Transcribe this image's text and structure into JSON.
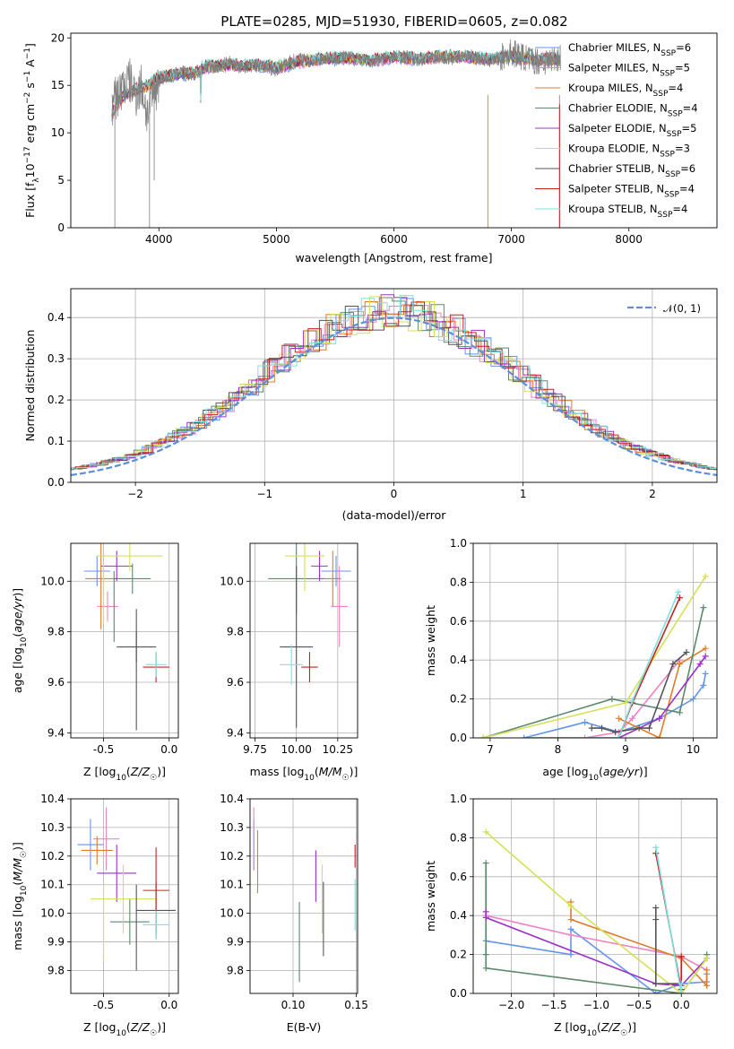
{
  "title": "PLATE=0285, MJD=51930, FIBERID=0605, z=0.082",
  "colors": {
    "Chabrier MILES": "#6495ED",
    "Salpeter MILES": "#EE82C8",
    "Kroupa MILES": "#E07B2A",
    "Chabrier ELODIE": "#5B8A6B",
    "Salpeter ELODIE": "#9B30C8",
    "Kroupa ELODIE": "#D4E157",
    "Chabrier STELIB": "#555555",
    "Salpeter STELIB": "#C62020",
    "Kroupa STELIB": "#7FE0E0",
    "data": "#808080",
    "normal": "#5B8FD9"
  },
  "chart_data": [
    {
      "type": "line",
      "name": "spectrum",
      "xlabel": "wavelength [Angstrom, rest frame]",
      "ylabel": "Flux [f_λ 10^-17 erg cm^-2 s^-1 A^-1]",
      "xlim": [
        3250,
        8750
      ],
      "ylim": [
        0,
        20.5
      ],
      "xticks": [
        4000,
        5000,
        6000,
        7000,
        8000
      ],
      "yticks": [
        0,
        5,
        10,
        15,
        20
      ],
      "legend_position": "upper-right",
      "legend": [
        {
          "name": "Chabrier MILES",
          "label": "Chabrier MILES, N",
          "sub": "SSP",
          "suffix": "=6"
        },
        {
          "name": "Salpeter MILES",
          "label": "Salpeter MILES, N",
          "sub": "SSP",
          "suffix": "=5"
        },
        {
          "name": "Kroupa MILES",
          "label": "Kroupa MILES, N",
          "sub": "SSP",
          "suffix": "=4"
        },
        {
          "name": "Chabrier ELODIE",
          "label": "Chabrier ELODIE, N",
          "sub": "SSP",
          "suffix": "=4"
        },
        {
          "name": "Salpeter ELODIE",
          "label": "Salpeter ELODIE, N",
          "sub": "SSP",
          "suffix": "=5"
        },
        {
          "name": "Kroupa ELODIE",
          "label": "Kroupa ELODIE, N",
          "sub": "SSP",
          "suffix": "=3"
        },
        {
          "name": "Chabrier STELIB",
          "label": "Chabrier STELIB, N",
          "sub": "SSP",
          "suffix": "=6"
        },
        {
          "name": "Salpeter STELIB",
          "label": "Salpeter STELIB, N",
          "sub": "SSP",
          "suffix": "=4"
        },
        {
          "name": "Kroupa STELIB",
          "label": "Kroupa STELIB, N",
          "sub": "SSP",
          "suffix": "=4"
        }
      ],
      "series": [
        {
          "name": "data",
          "x": [
            3600,
            3650,
            3700,
            3750,
            3800,
            3850,
            3900,
            3950,
            4000,
            4100,
            4200,
            4300,
            4400,
            4500,
            4600,
            4700,
            4800,
            4900,
            5000,
            5100,
            5200,
            5300,
            5400,
            5500,
            5600,
            5700,
            5800,
            5900,
            6000,
            6100,
            6200,
            6300,
            6400,
            6500,
            6600,
            6700,
            6800,
            6900,
            7000,
            7100,
            7200,
            7300,
            7400
          ],
          "y": [
            13,
            14,
            15,
            15.5,
            14,
            15,
            12,
            14,
            15.5,
            16,
            16.5,
            16,
            17,
            17,
            17.5,
            17,
            17.2,
            17,
            16.5,
            17.5,
            17.8,
            17.6,
            17.8,
            18,
            18,
            17.9,
            17.5,
            17.8,
            18,
            18.1,
            17.6,
            18,
            18,
            17.7,
            18.2,
            18,
            17.5,
            17.8,
            18.5,
            18,
            17.6,
            17.5,
            18
          ]
        },
        {
          "name": "models",
          "x": [
            3600,
            3700,
            3800,
            3900,
            4000,
            4100,
            4200,
            4300,
            4400,
            4500,
            4600,
            4700,
            4800,
            4900,
            5000,
            5200,
            5400,
            5600,
            5800,
            6000,
            6200,
            6400,
            6600,
            6800,
            7000,
            7200,
            7400
          ],
          "y": [
            12,
            14,
            14.5,
            15,
            15.8,
            16,
            16.2,
            16.3,
            17,
            17,
            17.2,
            17,
            17.1,
            17.1,
            16.9,
            17.5,
            17.8,
            17.9,
            17.6,
            18,
            17.8,
            18,
            18,
            17.8,
            18,
            17.7,
            17.8
          ]
        }
      ]
    },
    {
      "type": "histogram",
      "name": "residuals",
      "xlabel": "(data-model)/error",
      "ylabel": "Normed distribution",
      "xlim": [
        -2.5,
        2.5
      ],
      "ylim": [
        0,
        0.47
      ],
      "xticks": [
        -2,
        -1,
        0,
        1,
        2
      ],
      "yticks": [
        0.0,
        0.1,
        0.2,
        0.3,
        0.4
      ],
      "legend_position": "upper-right",
      "legend_label": "𝒩(0, 1)",
      "bin_width": 0.1
    },
    {
      "type": "scatter",
      "name": "age-vs-metallicity",
      "xlabel": "Z [log10(Z/Z☉)]",
      "ylabel": "age [log10(age/yr)]",
      "xlim": [
        -0.75,
        0.07
      ],
      "ylim": [
        9.38,
        10.15
      ],
      "xticks": [
        -0.5,
        0.0
      ],
      "yticks": [
        9.4,
        9.6,
        9.8,
        10.0
      ],
      "points": [
        {
          "series": "Chabrier MILES",
          "x": -0.55,
          "y": 10.04,
          "xerr": 0.1,
          "yerr": 0.06
        },
        {
          "series": "Salpeter MILES",
          "x": -0.47,
          "y": 9.9,
          "xerr": 0.08,
          "yerr": 0.06
        },
        {
          "series": "Kroupa MILES",
          "x": -0.52,
          "y": 10.01,
          "xerr": 0.12,
          "yerr": 0.2
        },
        {
          "series": "Chabrier ELODIE",
          "x": -0.28,
          "y": 10.01,
          "xerr": 0.14,
          "yerr": 0.06
        },
        {
          "series": "Salpeter ELODIE",
          "x": -0.4,
          "y": 10.06,
          "xerr": 0.12,
          "yerr": 0.06
        },
        {
          "series": "Kroupa ELODIE",
          "x": -0.3,
          "y": 10.1,
          "xerr": 0.25,
          "yerr": 0.06
        },
        {
          "series": "Chabrier STELIB",
          "x": -0.25,
          "y": 9.74,
          "xerr": 0.15,
          "yerr": 0.06
        },
        {
          "series": "Salpeter STELIB",
          "x": -0.1,
          "y": 9.66,
          "xerr": 0.1,
          "yerr": 0.06
        },
        {
          "series": "Kroupa STELIB",
          "x": -0.1,
          "y": 9.67,
          "xerr": 0.08,
          "yerr": 0.05
        },
        {
          "series": "Chabrier STELIB",
          "x": -0.25,
          "y": 9.65,
          "xerr": 0.0,
          "yerr": 0.24
        },
        {
          "series": "Kroupa ELODIE",
          "x": -0.5,
          "y": 9.95,
          "xerr": 0.0,
          "yerr": 0.12
        },
        {
          "series": "Chabrier ELODIE",
          "x": -0.42,
          "y": 9.9,
          "xerr": 0.0,
          "yerr": 0.14
        }
      ]
    },
    {
      "type": "scatter",
      "name": "age-vs-mass",
      "xlabel": "mass [log10(M/M☉)]",
      "ylabel": "",
      "xlim": [
        9.72,
        10.37
      ],
      "ylim": [
        9.38,
        10.15
      ],
      "xticks": [
        9.75,
        10.0,
        10.25
      ],
      "yticks": [
        9.4,
        9.6,
        9.8,
        10.0
      ],
      "points": [
        {
          "series": "Chabrier MILES",
          "x": 10.24,
          "y": 10.04,
          "xerr": 0.09,
          "yerr": 0.06
        },
        {
          "series": "Salpeter MILES",
          "x": 10.26,
          "y": 9.9,
          "xerr": 0.05,
          "yerr": 0.16
        },
        {
          "series": "Kroupa MILES",
          "x": 10.22,
          "y": 10.01,
          "xerr": 0.05,
          "yerr": 0.11
        },
        {
          "series": "Chabrier ELODIE",
          "x": 10.0,
          "y": 10.01,
          "xerr": 0.17,
          "yerr": 0.14
        },
        {
          "series": "Salpeter ELODIE",
          "x": 10.14,
          "y": 10.06,
          "xerr": 0.05,
          "yerr": 0.06
        },
        {
          "series": "Kroupa ELODIE",
          "x": 10.05,
          "y": 10.1,
          "xerr": 0.12,
          "yerr": 0.14
        },
        {
          "series": "Chabrier STELIB",
          "x": 10.0,
          "y": 9.74,
          "xerr": 0.1,
          "yerr": 0.32
        },
        {
          "series": "Salpeter STELIB",
          "x": 10.08,
          "y": 9.66,
          "xerr": 0.05,
          "yerr": 0.06
        },
        {
          "series": "Kroupa STELIB",
          "x": 9.97,
          "y": 9.67,
          "xerr": 0.07,
          "yerr": 0.08
        }
      ]
    },
    {
      "type": "line",
      "name": "mass-weight-vs-age",
      "xlabel": "age [log10(age/yr)]",
      "ylabel": "mass weight",
      "xlim": [
        6.75,
        10.35
      ],
      "ylim": [
        0,
        1.0
      ],
      "xticks": [
        7,
        8,
        9,
        10
      ],
      "yticks": [
        0.0,
        0.2,
        0.4,
        0.6,
        0.8,
        1.0
      ],
      "series": [
        {
          "name": "Chabrier MILES",
          "x": [
            7.5,
            8.4,
            8.9,
            9.5,
            10.0,
            10.15,
            10.18
          ],
          "y": [
            0.0,
            0.08,
            0.03,
            0.1,
            0.2,
            0.27,
            0.33
          ]
        },
        {
          "name": "Salpeter MILES",
          "x": [
            8.4,
            8.9,
            9.1,
            9.8
          ],
          "y": [
            0.0,
            0.03,
            0.1,
            0.4
          ]
        },
        {
          "name": "Kroupa MILES",
          "x": [
            8.9,
            9.5,
            9.8,
            10.18
          ],
          "y": [
            0.1,
            0.0,
            0.38,
            0.46
          ]
        },
        {
          "name": "Chabrier ELODIE",
          "x": [
            6.9,
            8.8,
            9.8,
            10.15
          ],
          "y": [
            0.0,
            0.2,
            0.13,
            0.67
          ]
        },
        {
          "name": "Salpeter ELODIE",
          "x": [
            8.9,
            9.5,
            10.1,
            10.18
          ],
          "y": [
            0.0,
            0.1,
            0.38,
            0.42
          ]
        },
        {
          "name": "Kroupa ELODIE",
          "x": [
            6.9,
            9.0,
            10.18
          ],
          "y": [
            0.0,
            0.18,
            0.83
          ]
        },
        {
          "name": "Chabrier STELIB",
          "x": [
            8.5,
            8.65,
            8.85,
            9.2,
            9.35,
            9.7,
            9.9
          ],
          "y": [
            0.05,
            0.05,
            0.03,
            0.05,
            0.05,
            0.38,
            0.44
          ]
        },
        {
          "name": "Salpeter STELIB",
          "x": [
            7.6,
            8.9,
            9.1,
            9.8
          ],
          "y": [
            0.0,
            0.0,
            0.18,
            0.72
          ]
        },
        {
          "name": "Kroupa STELIB",
          "x": [
            7.6,
            8.9,
            9.1,
            9.78
          ],
          "y": [
            0.0,
            0.0,
            0.19,
            0.75
          ]
        }
      ]
    },
    {
      "type": "scatter",
      "name": "mass-vs-metallicity",
      "xlabel": "Z [log10(Z/Z☉)]",
      "ylabel": "mass [log10(M/M☉)]",
      "xlim": [
        -0.75,
        0.07
      ],
      "ylim": [
        9.72,
        10.4
      ],
      "xticks": [
        -0.5,
        0.0
      ],
      "yticks": [
        9.8,
        9.9,
        10.0,
        10.1,
        10.2,
        10.3,
        10.4
      ],
      "points": [
        {
          "series": "Chabrier MILES",
          "x": -0.6,
          "y": 10.24,
          "xerr": 0.1,
          "yerr": 0.09
        },
        {
          "series": "Salpeter MILES",
          "x": -0.48,
          "y": 10.26,
          "xerr": 0.1,
          "yerr": 0.11
        },
        {
          "series": "Kroupa MILES",
          "x": -0.55,
          "y": 10.22,
          "xerr": 0.12,
          "yerr": 0.05
        },
        {
          "series": "Chabrier ELODIE",
          "x": -0.3,
          "y": 9.97,
          "xerr": 0.15,
          "yerr": 0.08
        },
        {
          "series": "Salpeter ELODIE",
          "x": -0.4,
          "y": 10.14,
          "xerr": 0.15,
          "yerr": 0.1
        },
        {
          "series": "Kroupa ELODIE",
          "x": -0.35,
          "y": 10.05,
          "xerr": 0.25,
          "yerr": 0.12
        },
        {
          "series": "Chabrier STELIB",
          "x": -0.1,
          "y": 10.01,
          "xerr": 0.15,
          "yerr": 0.1
        },
        {
          "series": "Salpeter STELIB",
          "x": -0.1,
          "y": 10.08,
          "xerr": 0.1,
          "yerr": 0.15
        },
        {
          "series": "Kroupa STELIB",
          "x": -0.1,
          "y": 9.96,
          "xerr": 0.1,
          "yerr": 0.05
        },
        {
          "series": "Kroupa ELODIE",
          "x": -0.5,
          "y": 9.97,
          "xerr": 0.0,
          "yerr": 0.13
        },
        {
          "series": "Chabrier STELIB",
          "x": -0.25,
          "y": 9.95,
          "xerr": 0.0,
          "yerr": 0.15
        }
      ]
    },
    {
      "type": "scatter",
      "name": "mass-vs-extinction",
      "xlabel": "E(B-V)",
      "ylabel": "",
      "xlim": [
        0.066,
        0.151
      ],
      "ylim": [
        9.72,
        10.4
      ],
      "xticks": [
        0.1,
        0.15
      ],
      "yticks": [
        9.8,
        9.9,
        10.0,
        10.1,
        10.2,
        10.3,
        10.4
      ],
      "points": [
        {
          "series": "Chabrier MILES",
          "x": 0.069,
          "y": 10.24,
          "yerr": 0.09
        },
        {
          "series": "Salpeter MILES",
          "x": 0.069,
          "y": 10.26,
          "yerr": 0.11
        },
        {
          "series": "Kroupa MILES",
          "x": 0.072,
          "y": 10.18,
          "yerr": 0.11
        },
        {
          "series": "Chabrier ELODIE",
          "x": 0.105,
          "y": 9.9,
          "yerr": 0.14
        },
        {
          "series": "Salpeter ELODIE",
          "x": 0.118,
          "y": 10.13,
          "yerr": 0.09
        },
        {
          "series": "Kroupa ELODIE",
          "x": 0.123,
          "y": 10.05,
          "yerr": 0.12
        },
        {
          "series": "Chabrier STELIB",
          "x": 0.124,
          "y": 9.98,
          "yerr": 0.13
        },
        {
          "series": "Salpeter STELIB",
          "x": 0.149,
          "y": 10.2,
          "yerr": 0.04
        },
        {
          "series": "Kroupa STELIB",
          "x": 0.149,
          "y": 10.03,
          "yerr": 0.09
        }
      ]
    },
    {
      "type": "line",
      "name": "mass-weight-vs-metallicity",
      "xlabel": "Z [log10(Z/Z☉)]",
      "ylabel": "mass weight",
      "xlim": [
        -2.45,
        0.42
      ],
      "ylim": [
        0,
        1.0
      ],
      "xticks": [
        -2.0,
        -1.5,
        -1.0,
        -0.5,
        0.0
      ],
      "yticks": [
        0.0,
        0.2,
        0.4,
        0.6,
        0.8,
        1.0
      ],
      "series": [
        {
          "name": "Chabrier MILES",
          "x": [
            -2.3,
            -1.3,
            -1.3,
            -0.3,
            0.0,
            0.3,
            0.3
          ],
          "y": [
            0.27,
            0.2,
            0.33,
            0.0,
            0.05,
            0.06,
            0.1
          ]
        },
        {
          "name": "Salpeter MILES",
          "x": [
            -2.3,
            -1.3,
            0.0,
            0.3
          ],
          "y": [
            0.4,
            0.3,
            0.19,
            0.12
          ]
        },
        {
          "name": "Kroupa MILES",
          "x": [
            -1.3,
            -1.3,
            0.0,
            0.3,
            0.3
          ],
          "y": [
            0.47,
            0.38,
            0.18,
            0.04,
            0.12
          ]
        },
        {
          "name": "Chabrier ELODIE",
          "x": [
            -2.3,
            -2.3,
            -2.3,
            0.0,
            0.3,
            0.3
          ],
          "y": [
            0.67,
            0.2,
            0.13,
            0.0,
            0.18,
            0.2
          ]
        },
        {
          "name": "Salpeter ELODIE",
          "x": [
            -2.3,
            -2.3,
            -0.3,
            0.0,
            0.3
          ],
          "y": [
            0.42,
            0.39,
            0.05,
            0.04,
            0.18
          ]
        },
        {
          "name": "Kroupa ELODIE",
          "x": [
            -2.3,
            -1.3,
            0.0,
            0.3
          ],
          "y": [
            0.83,
            0.45,
            0.0,
            0.18
          ]
        },
        {
          "name": "Chabrier STELIB",
          "x": [
            -0.3,
            -0.3,
            -0.3,
            0.0
          ],
          "y": [
            0.44,
            0.38,
            0.05,
            0.05
          ]
        },
        {
          "name": "Salpeter STELIB",
          "x": [
            -0.3,
            0.0,
            0.0
          ],
          "y": [
            0.72,
            0.02,
            0.19
          ]
        },
        {
          "name": "Kroupa STELIB",
          "x": [
            -0.3,
            0.0,
            0.0
          ],
          "y": [
            0.75,
            0.0,
            0.05
          ]
        }
      ]
    }
  ]
}
